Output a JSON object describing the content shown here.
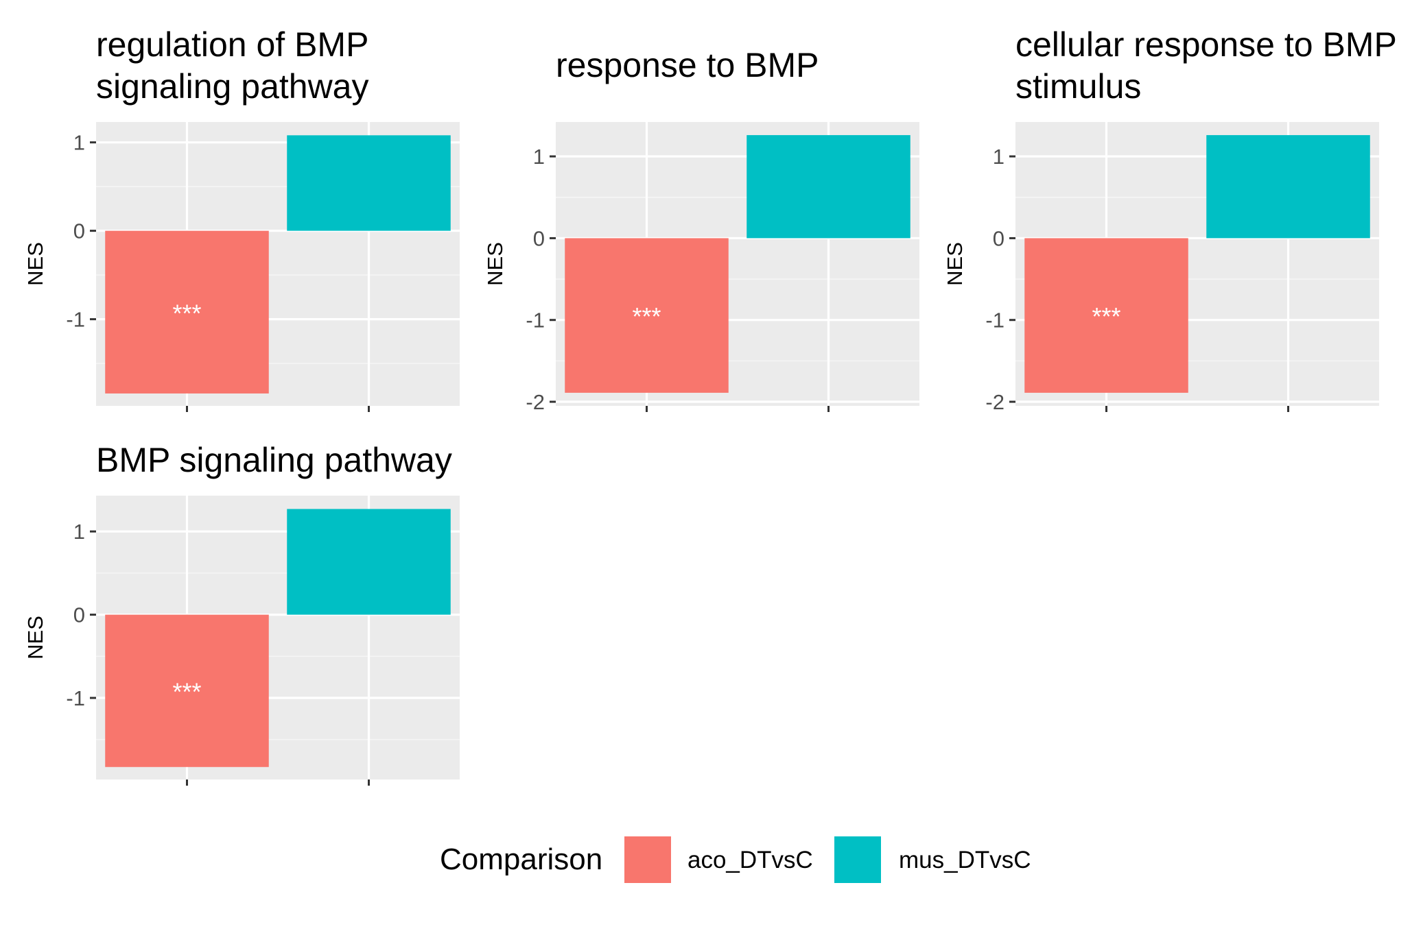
{
  "colors": {
    "panel_background": "#EBEBEB",
    "grid_major": "#FFFFFF",
    "grid_minor": "#F5F5F5",
    "aco_DTvsC": "#F8766D",
    "mus_DTvsC": "#00BFC4",
    "significance_text": "#FFFFFF"
  },
  "chart_data": [
    {
      "type": "bar",
      "title_lines": [
        "regulation of BMP",
        "signaling pathway"
      ],
      "ylabel": "NES",
      "categories": [
        "aco_DTvsC",
        "mus_DTvsC"
      ],
      "values": [
        -1.84,
        1.08
      ],
      "labels": [
        "***",
        ""
      ],
      "ylim": [
        -1.98,
        1.23
      ],
      "yticks": [
        1,
        0,
        -1
      ],
      "ytick_labels": [
        "1",
        "0",
        "-1"
      ],
      "grid": true
    },
    {
      "type": "bar",
      "title_lines": [
        "response to BMP"
      ],
      "ylabel": "NES",
      "categories": [
        "aco_DTvsC",
        "mus_DTvsC"
      ],
      "values": [
        -1.89,
        1.26
      ],
      "labels": [
        "***",
        ""
      ],
      "ylim": [
        -2.05,
        1.42
      ],
      "yticks": [
        1,
        0,
        -1,
        -2
      ],
      "ytick_labels": [
        "1",
        "0",
        "-1",
        "-2"
      ],
      "grid": true
    },
    {
      "type": "bar",
      "title_lines": [
        "cellular response to BMP",
        "stimulus"
      ],
      "ylabel": "NES",
      "categories": [
        "aco_DTvsC",
        "mus_DTvsC"
      ],
      "values": [
        -1.89,
        1.26
      ],
      "labels": [
        "***",
        ""
      ],
      "ylim": [
        -2.05,
        1.42
      ],
      "yticks": [
        1,
        0,
        -1,
        -2
      ],
      "ytick_labels": [
        "1",
        "0",
        "-1",
        "-2"
      ],
      "grid": true
    },
    {
      "type": "bar",
      "title_lines": [
        "BMP signaling pathway"
      ],
      "ylabel": "NES",
      "categories": [
        "aco_DTvsC",
        "mus_DTvsC"
      ],
      "values": [
        -1.83,
        1.27
      ],
      "labels": [
        "***",
        ""
      ],
      "ylim": [
        -1.98,
        1.43
      ],
      "yticks": [
        1,
        0,
        -1
      ],
      "ytick_labels": [
        "1",
        "0",
        "-1"
      ],
      "grid": true
    }
  ],
  "legend": {
    "title": "Comparison",
    "placement": "bottom",
    "entries": [
      {
        "label": "aco_DTvsC",
        "color": "#F8766D"
      },
      {
        "label": "mus_DTvsC",
        "color": "#00BFC4"
      }
    ]
  }
}
